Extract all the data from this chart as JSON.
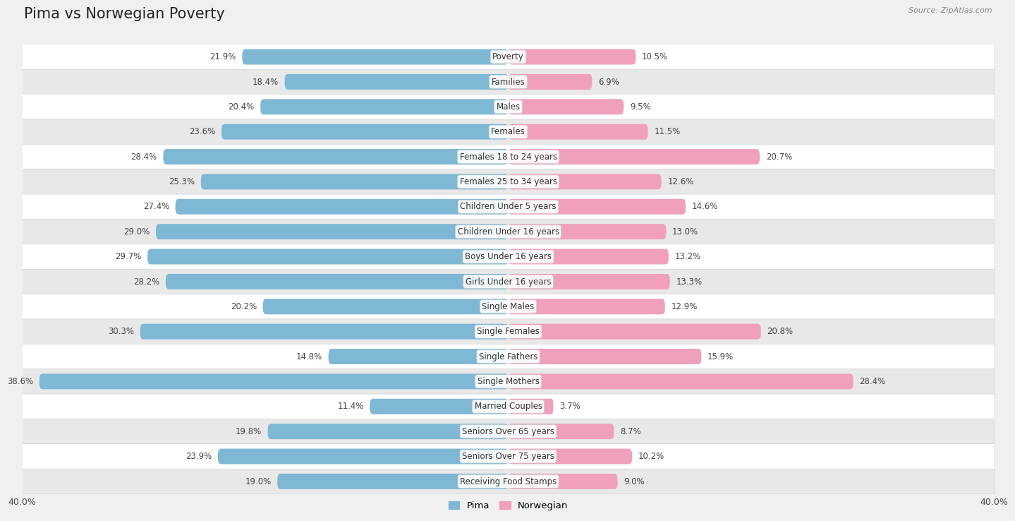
{
  "title": "Pima vs Norwegian Poverty",
  "source": "Source: ZipAtlas.com",
  "categories": [
    "Poverty",
    "Families",
    "Males",
    "Females",
    "Females 18 to 24 years",
    "Females 25 to 34 years",
    "Children Under 5 years",
    "Children Under 16 years",
    "Boys Under 16 years",
    "Girls Under 16 years",
    "Single Males",
    "Single Females",
    "Single Fathers",
    "Single Mothers",
    "Married Couples",
    "Seniors Over 65 years",
    "Seniors Over 75 years",
    "Receiving Food Stamps"
  ],
  "pima_values": [
    21.9,
    18.4,
    20.4,
    23.6,
    28.4,
    25.3,
    27.4,
    29.0,
    29.7,
    28.2,
    20.2,
    30.3,
    14.8,
    38.6,
    11.4,
    19.8,
    23.9,
    19.0
  ],
  "norwegian_values": [
    10.5,
    6.9,
    9.5,
    11.5,
    20.7,
    12.6,
    14.6,
    13.0,
    13.2,
    13.3,
    12.9,
    20.8,
    15.9,
    28.4,
    3.7,
    8.7,
    10.2,
    9.0
  ],
  "pima_color": "#7eb8d4",
  "norwegian_color": "#f0a0b8",
  "axis_max": 40.0,
  "background_color": "#f0f0f0",
  "row_bg_light": "#ffffff",
  "row_bg_dark": "#e8e8e8",
  "title_fontsize": 15,
  "label_fontsize": 8.5,
  "value_fontsize": 8.5,
  "legend_labels": [
    "Pima",
    "Norwegian"
  ]
}
